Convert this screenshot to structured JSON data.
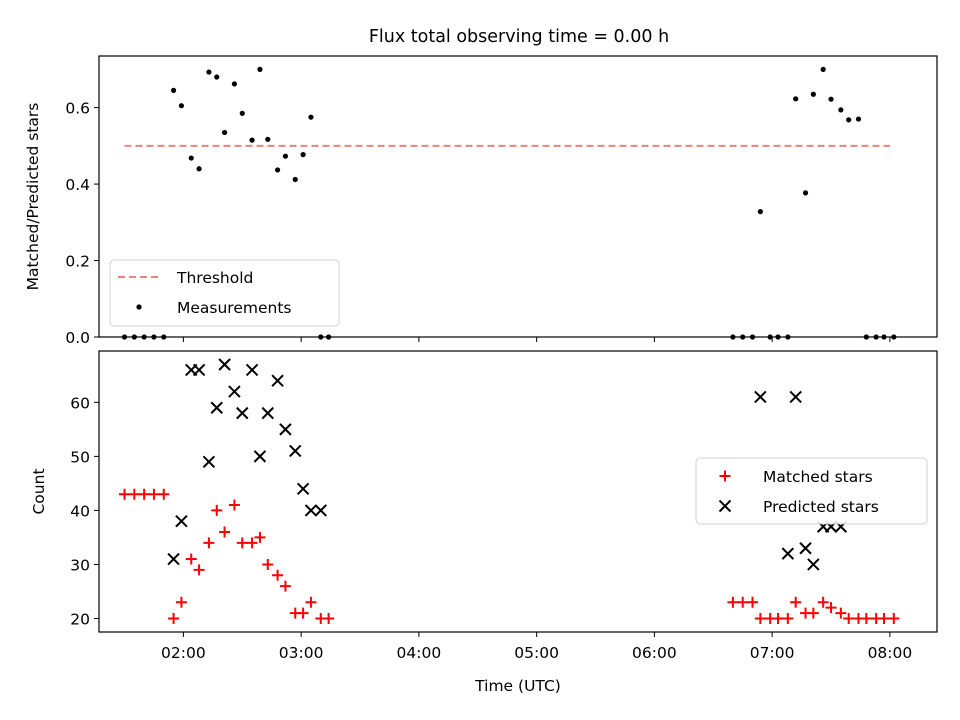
{
  "title": "Flux total observing time = 0.00 h",
  "chart_data": [
    {
      "type": "scatter",
      "panel": "top",
      "title": "Flux total observing time = 0.00 h",
      "xlabel": "",
      "ylabel": "Matched/Predicted stars",
      "xlim": [
        "01:17",
        "08:24"
      ],
      "ylim": [
        0,
        0.735
      ],
      "yticks": [
        0.0,
        0.2,
        0.4,
        0.6
      ],
      "ytick_labels": [
        "0.0",
        "0.2",
        "0.4",
        "0.6"
      ],
      "legend_position": "lower-left",
      "grid": false,
      "threshold": {
        "name": "Threshold",
        "y": 0.5,
        "x_range": [
          "01:30",
          "08:00"
        ],
        "color": "#f08080",
        "style": "dashed"
      },
      "series": [
        {
          "name": "Measurements",
          "color": "#000000",
          "marker": "dot",
          "x": [
            "01:30",
            "01:35",
            "01:40",
            "01:45",
            "01:50",
            "01:55",
            "01:59",
            "02:04",
            "02:08",
            "02:13",
            "02:17",
            "02:21",
            "02:26",
            "02:30",
            "02:35",
            "02:39",
            "02:43",
            "02:48",
            "02:52",
            "02:57",
            "03:01",
            "03:05",
            "03:10",
            "03:14",
            "06:40",
            "06:45",
            "06:50",
            "06:54",
            "06:59",
            "07:03",
            "07:08",
            "07:12",
            "07:17",
            "07:21",
            "07:26",
            "07:30",
            "07:35",
            "07:39",
            "07:44",
            "07:48",
            "07:53",
            "07:57",
            "08:02"
          ],
          "y": [
            0.0,
            0.0,
            0.0,
            0.0,
            0.0,
            0.645,
            0.605,
            0.468,
            0.44,
            0.693,
            0.68,
            0.535,
            0.662,
            0.585,
            0.515,
            0.7,
            0.517,
            0.437,
            0.473,
            0.412,
            0.477,
            0.575,
            0.0,
            0.0,
            0.0,
            0.0,
            0.0,
            0.328,
            0.0,
            0.0,
            0.0,
            0.623,
            0.377,
            0.635,
            0.7,
            0.622,
            0.594,
            0.568,
            0.57,
            0.0,
            0.0,
            0.0,
            0.0
          ]
        }
      ]
    },
    {
      "type": "scatter",
      "panel": "bottom",
      "xlabel": "Time (UTC)",
      "ylabel": "Count",
      "xlim": [
        "01:17",
        "08:24"
      ],
      "ylim": [
        17.5,
        69.5
      ],
      "yticks": [
        20,
        30,
        40,
        50,
        60
      ],
      "ytick_labels": [
        "20",
        "30",
        "40",
        "50",
        "60"
      ],
      "xticks": [
        "02:00",
        "03:00",
        "04:00",
        "05:00",
        "06:00",
        "07:00",
        "08:00"
      ],
      "legend_position": "center-right",
      "grid": false,
      "series": [
        {
          "name": "Matched stars",
          "color": "#ff0000",
          "marker": "plus",
          "x": [
            "01:30",
            "01:35",
            "01:40",
            "01:45",
            "01:50",
            "01:55",
            "01:59",
            "02:04",
            "02:08",
            "02:13",
            "02:17",
            "02:21",
            "02:26",
            "02:30",
            "02:35",
            "02:39",
            "02:43",
            "02:48",
            "02:52",
            "02:57",
            "03:01",
            "03:05",
            "03:10",
            "03:14",
            "06:40",
            "06:45",
            "06:50",
            "06:54",
            "06:59",
            "07:03",
            "07:08",
            "07:12",
            "07:17",
            "07:21",
            "07:26",
            "07:30",
            "07:35",
            "07:39",
            "07:44",
            "07:48",
            "07:53",
            "07:57",
            "08:02"
          ],
          "y": [
            43,
            43,
            43,
            43,
            43,
            20,
            23,
            31,
            29,
            34,
            40,
            36,
            41,
            34,
            34,
            35,
            30,
            28,
            26,
            21,
            21,
            23,
            20,
            20,
            23,
            23,
            23,
            20,
            20,
            20,
            20,
            23,
            21,
            21,
            23,
            22,
            21,
            20,
            20,
            20,
            20,
            20,
            20
          ]
        },
        {
          "name": "Predicted stars",
          "color": "#000000",
          "marker": "x",
          "x": [
            "01:55",
            "01:59",
            "02:04",
            "02:08",
            "02:13",
            "02:17",
            "02:21",
            "02:26",
            "02:30",
            "02:35",
            "02:39",
            "02:43",
            "02:48",
            "02:52",
            "02:57",
            "03:01",
            "03:05",
            "03:10",
            "06:54",
            "07:08",
            "07:12",
            "07:17",
            "07:21",
            "07:26",
            "07:30",
            "07:35"
          ],
          "y": [
            31,
            38,
            66,
            66,
            49,
            59,
            67,
            62,
            58,
            66,
            50,
            58,
            64,
            55,
            51,
            44,
            40,
            40,
            61,
            32,
            61,
            33,
            30,
            37,
            37,
            37
          ]
        }
      ]
    }
  ]
}
